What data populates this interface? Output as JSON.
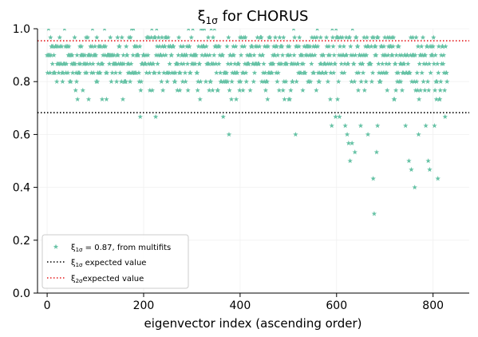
{
  "chart_data": {
    "type": "scatter",
    "title_main": "ξ",
    "title_sub": "1σ",
    "title_rest": " for CHORUS",
    "xlabel": "eigenvector index (ascending order)",
    "ylabel": "",
    "xlim": [
      -20,
      875
    ],
    "ylim": [
      0.0,
      1.0
    ],
    "xticks": [
      0,
      200,
      400,
      600,
      800
    ],
    "yticks": [
      0.0,
      0.2,
      0.4,
      0.6,
      0.8,
      1.0
    ],
    "xtick_labels": [
      "0",
      "200",
      "400",
      "600",
      "800"
    ],
    "ytick_labels": [
      "0.0",
      "0.2",
      "0.4",
      "0.6",
      "0.8",
      "1.0"
    ],
    "grid": true,
    "legend_position": "lower-left",
    "series": [
      {
        "kind": "points",
        "marker": "star",
        "color": "#66c2a5",
        "legend": {
          "sym": "ξ",
          "sub": "1σ",
          "text": " = 0.87, from multifits"
        },
        "n_points": 830,
        "x_start": 0,
        "x_step": 1,
        "levels": [
          0.6,
          0.633,
          0.667,
          0.7,
          0.733,
          0.767,
          0.8,
          0.833,
          0.867,
          0.9,
          0.933,
          0.967,
          1.0
        ],
        "outliers": [
          {
            "x": 193,
            "y": 0.667
          },
          {
            "x": 225,
            "y": 0.667
          },
          {
            "x": 365,
            "y": 0.667
          },
          {
            "x": 377,
            "y": 0.6
          },
          {
            "x": 515,
            "y": 0.6
          },
          {
            "x": 590,
            "y": 0.633
          },
          {
            "x": 598,
            "y": 0.667
          },
          {
            "x": 606,
            "y": 0.667
          },
          {
            "x": 618,
            "y": 0.633
          },
          {
            "x": 622,
            "y": 0.6
          },
          {
            "x": 625,
            "y": 0.567
          },
          {
            "x": 628,
            "y": 0.5
          },
          {
            "x": 632,
            "y": 0.567
          },
          {
            "x": 638,
            "y": 0.533
          },
          {
            "x": 650,
            "y": 0.633
          },
          {
            "x": 665,
            "y": 0.6
          },
          {
            "x": 676,
            "y": 0.433
          },
          {
            "x": 678,
            "y": 0.3
          },
          {
            "x": 683,
            "y": 0.533
          },
          {
            "x": 685,
            "y": 0.633
          },
          {
            "x": 743,
            "y": 0.633
          },
          {
            "x": 750,
            "y": 0.5
          },
          {
            "x": 755,
            "y": 0.467
          },
          {
            "x": 762,
            "y": 0.4
          },
          {
            "x": 770,
            "y": 0.6
          },
          {
            "x": 785,
            "y": 0.633
          },
          {
            "x": 790,
            "y": 0.5
          },
          {
            "x": 793,
            "y": 0.467
          },
          {
            "x": 803,
            "y": 0.633
          },
          {
            "x": 810,
            "y": 0.433
          },
          {
            "x": 825,
            "y": 0.667
          },
          {
            "x": 830,
            "y": 0.6
          }
        ]
      },
      {
        "kind": "hline",
        "y": 0.6827,
        "style": "dotted",
        "color": "#000000",
        "legend": {
          "sym": "ξ",
          "sub": "1σ",
          "text": " expected value"
        }
      },
      {
        "kind": "hline",
        "y": 0.9545,
        "style": "dotted",
        "color": "#e41a1c",
        "legend": {
          "sym": "ξ",
          "sub": "2σ",
          "text": "expected value"
        }
      }
    ]
  }
}
